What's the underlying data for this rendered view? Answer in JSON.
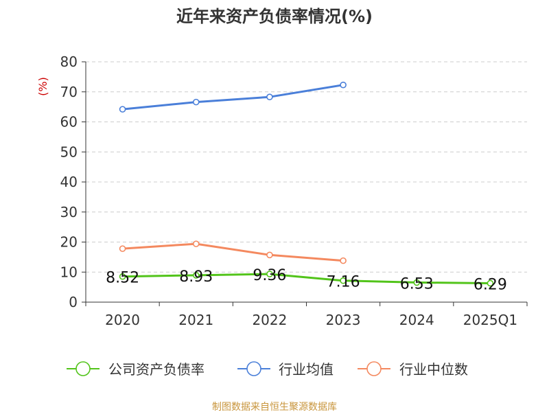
{
  "chart_data": {
    "type": "line",
    "title": "近年来资产负债率情况(%)",
    "ylabel": "(%)",
    "xlabel": "",
    "categories": [
      "2020",
      "2021",
      "2022",
      "2023",
      "2024",
      "2025Q1"
    ],
    "ylim": [
      0,
      80
    ],
    "yticks": [
      0,
      10,
      20,
      30,
      40,
      50,
      60,
      70,
      80
    ],
    "grid": true,
    "legend_position": "bottom",
    "series": [
      {
        "name": "公司资产负债率",
        "color": "#52c41a",
        "values": [
          8.52,
          8.93,
          9.36,
          7.16,
          6.53,
          6.29
        ],
        "labels": [
          "8.52",
          "8.93",
          "9.36",
          "7.16",
          "6.53",
          "6.29"
        ],
        "show_labels": true
      },
      {
        "name": "行业均值",
        "color": "#4a7fd9",
        "values": [
          64.2,
          66.6,
          68.3,
          72.3,
          null,
          null
        ],
        "show_labels": false
      },
      {
        "name": "行业中位数",
        "color": "#f4895f",
        "values": [
          17.8,
          19.4,
          15.7,
          13.8,
          null,
          null
        ],
        "show_labels": false
      }
    ],
    "source": "制图数据来自恒生聚源数据库"
  }
}
